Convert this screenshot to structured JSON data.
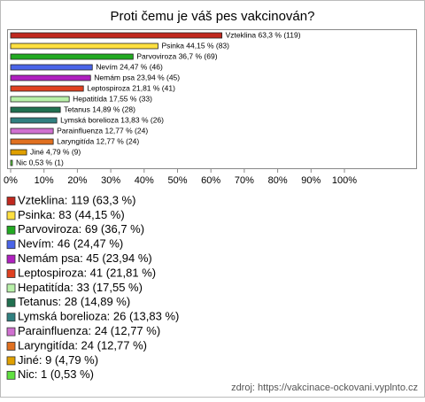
{
  "chart_data": {
    "type": "bar",
    "horizontal": true,
    "title": "Proti čemu je váš pes vakcinován?",
    "values": [
      63.3,
      44.15,
      36.7,
      24.47,
      23.94,
      21.81,
      17.55,
      14.89,
      13.83,
      12.77,
      12.77,
      4.79,
      0.53
    ],
    "value_labels": [
      "Vzteklina 63,3 % (119)",
      "Psinka 44,15 % (83)",
      "Parvoviroza 36,7 % (69)",
      "Nevím 24,47 % (46)",
      "Nemám psa 23,94 % (45)",
      "Leptospiroza 21,81 % (41)",
      "Hepatitída 17,55 % (33)",
      "Tetanus 14,89 % (28)",
      "Lymská borelioza 13,83 % (26)",
      "Parainfluenza 12,77 % (24)",
      "Laryngitída 12,77 % (24)",
      "Jiné 4,79 % (9)",
      "Nic 0,53 % (1)"
    ],
    "legend": [
      "Vzteklina: 119 (63,3 %)",
      "Psinka: 83 (44,15 %)",
      "Parvoviroza: 69 (36,7 %)",
      "Nevím: 46 (24,47 %)",
      "Nemám psa: 45 (23,94 %)",
      "Leptospiroza: 41 (21,81 %)",
      "Hepatitída: 33 (17,55 %)",
      "Tetanus: 28 (14,89 %)",
      "Lymská borelioza: 26 (13,83 %)",
      "Parainfluenza: 24 (12,77 %)",
      "Laryngitída: 24 (12,77 %)",
      "Jiné: 9 (4,79 %)",
      "Nic: 1 (0,53 %)"
    ],
    "colors": [
      "#c0281e",
      "#ffe040",
      "#22aa22",
      "#4a64e8",
      "#b020c0",
      "#e04020",
      "#b8f0a8",
      "#207050",
      "#308080",
      "#d070d0",
      "#e07020",
      "#e0a000",
      "#60e040"
    ],
    "xlim": [
      0,
      100
    ],
    "xticks": [
      {
        "value": 0,
        "label": "0%"
      },
      {
        "value": 10,
        "label": "10%"
      },
      {
        "value": 20,
        "label": "20%"
      },
      {
        "value": 30,
        "label": "30%"
      },
      {
        "value": 40,
        "label": "40%"
      },
      {
        "value": 50,
        "label": "50%"
      },
      {
        "value": 60,
        "label": "60%"
      },
      {
        "value": 70,
        "label": "70%"
      },
      {
        "value": 80,
        "label": "80%"
      },
      {
        "value": 90,
        "label": "90%"
      },
      {
        "value": 100,
        "label": "100%"
      }
    ],
    "source": "zdroj: https://vakcinace-ockovani.vyplnto.cz"
  }
}
